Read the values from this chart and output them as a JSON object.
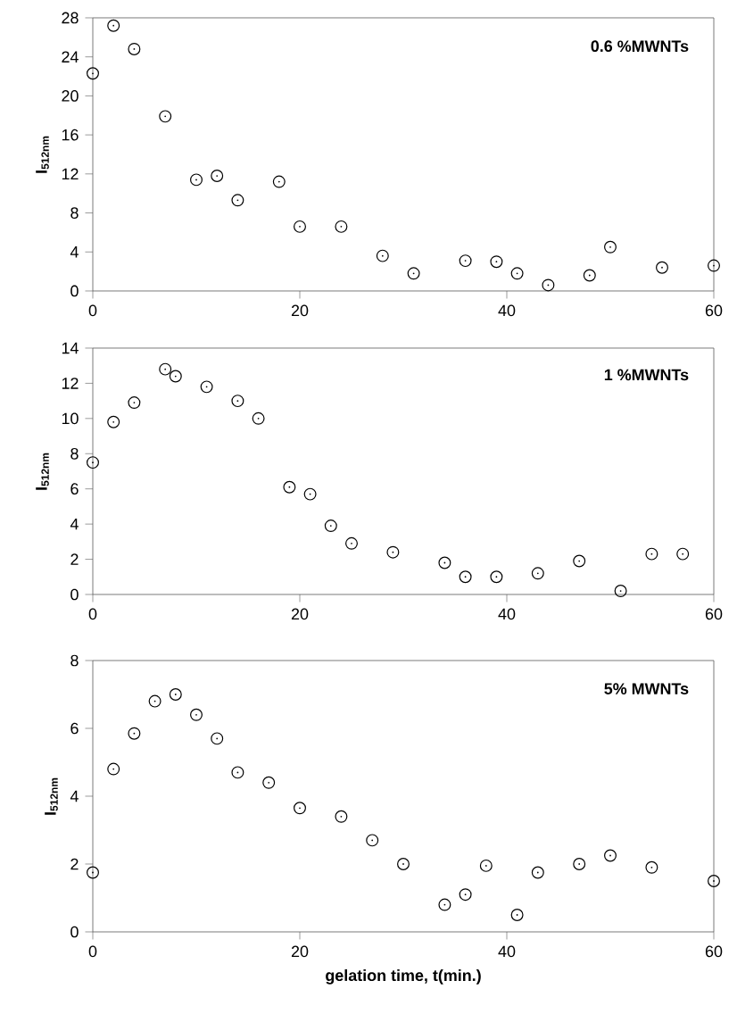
{
  "chart_data": [
    {
      "type": "scatter",
      "ylabel": "I$_{512nm}$",
      "annotations": [
        "0.6 %MWNTs"
      ],
      "marker": "circle",
      "grid": false,
      "xlim": [
        0,
        60
      ],
      "xticks": [
        0,
        20,
        40,
        60
      ],
      "ylim": [
        0,
        28
      ],
      "yticks": [
        0,
        4,
        8,
        12,
        16,
        20,
        24,
        28
      ],
      "series": [
        {
          "color": "#000000",
          "x": [
            0,
            2,
            4,
            7,
            10,
            12,
            14,
            18,
            20,
            24,
            28,
            31,
            36,
            39,
            41,
            44,
            48,
            50,
            55,
            60
          ],
          "values": [
            22.3,
            27.2,
            24.8,
            17.9,
            11.4,
            11.8,
            9.3,
            11.2,
            6.6,
            6.6,
            3.6,
            1.8,
            3.1,
            3.0,
            1.8,
            0.6,
            1.6,
            4.5,
            2.4,
            2.6
          ]
        }
      ]
    },
    {
      "type": "scatter",
      "ylabel": "I$_{512nm}$",
      "annotations": [
        "1 %MWNTs"
      ],
      "marker": "circle",
      "grid": false,
      "xlim": [
        0,
        60
      ],
      "xticks": [
        0,
        20,
        40,
        60
      ],
      "ylim": [
        0,
        14
      ],
      "yticks": [
        0,
        2,
        4,
        6,
        8,
        10,
        12,
        14
      ],
      "series": [
        {
          "color": "#000000",
          "x": [
            0,
            2,
            4,
            7,
            8,
            11,
            14,
            16,
            19,
            21,
            23,
            25,
            29,
            34,
            36,
            39,
            43,
            47,
            51,
            54,
            57
          ],
          "values": [
            7.5,
            9.8,
            10.9,
            12.8,
            12.4,
            11.8,
            11.0,
            10.0,
            6.1,
            5.7,
            3.9,
            2.9,
            2.4,
            1.8,
            1.0,
            1.0,
            1.2,
            1.9,
            0.2,
            2.3,
            2.3
          ]
        }
      ]
    },
    {
      "type": "scatter",
      "xlabel": "gelation time, t(min.)",
      "ylabel": "I$_{512nm}$",
      "annotations": [
        "5% MWNTs"
      ],
      "marker": "circle",
      "grid": false,
      "xlim": [
        0,
        60
      ],
      "xticks": [
        0,
        20,
        40,
        60
      ],
      "ylim": [
        0,
        8
      ],
      "yticks": [
        0,
        2,
        4,
        6,
        8
      ],
      "series": [
        {
          "color": "#000000",
          "x": [
            0,
            2,
            4,
            6,
            8,
            10,
            12,
            14,
            17,
            20,
            24,
            27,
            30,
            34,
            36,
            38,
            41,
            43,
            47,
            50,
            54,
            60
          ],
          "values": [
            1.75,
            4.8,
            5.85,
            6.8,
            7.0,
            6.4,
            5.7,
            4.7,
            4.4,
            3.65,
            3.4,
            2.7,
            2.0,
            0.8,
            1.1,
            1.95,
            0.5,
            1.75,
            2.0,
            2.25,
            1.9,
            1.5
          ]
        }
      ]
    }
  ]
}
